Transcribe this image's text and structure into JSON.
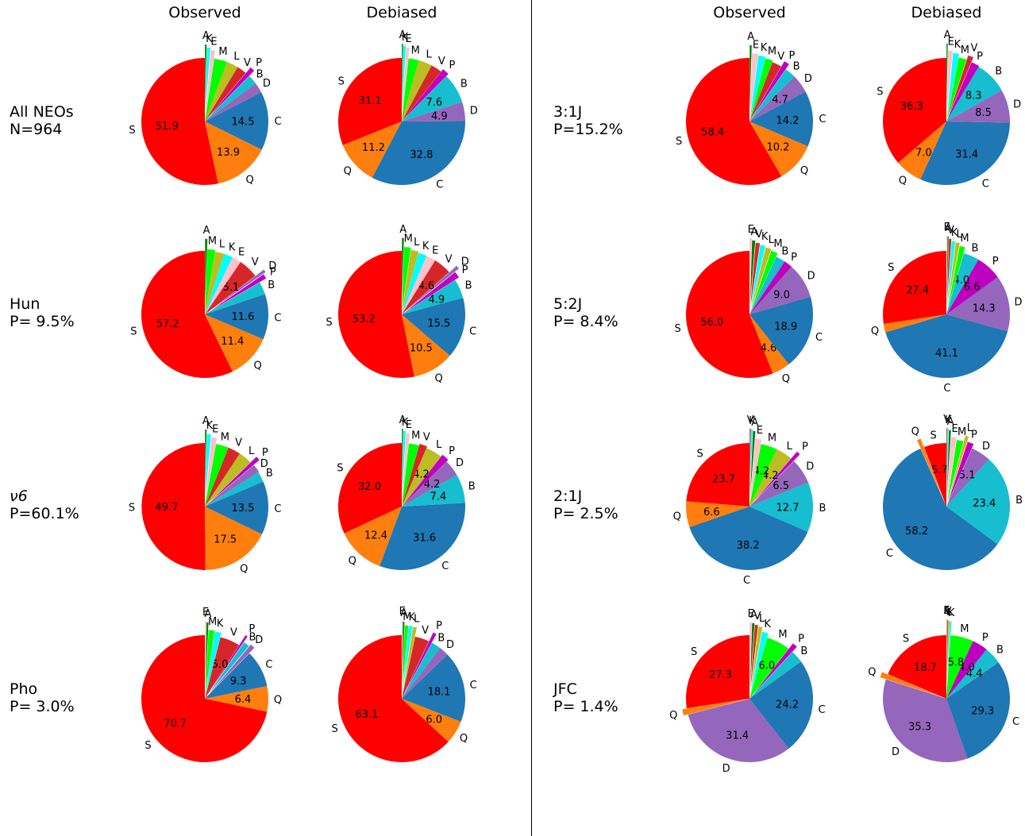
{
  "column_headers": [
    "Observed",
    "Debiased",
    "Observed",
    "Debiased"
  ],
  "row_labels": [
    {
      "line1": "All NEOs",
      "line2": "N=964"
    },
    {
      "line1": "Hun",
      "line2": "P= 9.5%"
    },
    {
      "line1": "ν6",
      "line2": "P=60.1%"
    },
    {
      "line1": "Pho",
      "line2": "P= 3.0%"
    },
    {
      "line1": "3:1J",
      "line2": "P=15.2%"
    },
    {
      "line1": "5:2J",
      "line2": "P= 8.4%"
    },
    {
      "line1": "2:1J",
      "line2": "P= 2.5%"
    },
    {
      "line1": "JFC",
      "line2": "P= 1.4%"
    }
  ],
  "colors": {
    "S": "#ff0000",
    "Q": "#ff7f0e",
    "C": "#1f77b4",
    "D": "#9467bd",
    "B": "#17becf",
    "P": "#bf00bf",
    "V": "#d62728",
    "L": "#bcbd22",
    "M": "#00ff00",
    "E": "#ffc0cb",
    "K": "#00ffff",
    "A": "#008000"
  },
  "chart_data": [
    {
      "type": "pie",
      "population": "All NEOs",
      "panel": "Observed",
      "slices": [
        {
          "label": "S",
          "value": 51.9
        },
        {
          "label": "Q",
          "value": 13.9
        },
        {
          "label": "C",
          "value": 14.5
        },
        {
          "label": "D",
          "value": 2.6
        },
        {
          "label": "B",
          "value": 2.3
        },
        {
          "label": "P",
          "value": 1.2
        },
        {
          "label": "V",
          "value": 2.4
        },
        {
          "label": "L",
          "value": 2.9
        },
        {
          "label": "M",
          "value": 3.2
        },
        {
          "label": "E",
          "value": 1.1
        },
        {
          "label": "K",
          "value": 0.8
        },
        {
          "label": "A",
          "value": 0.4
        }
      ]
    },
    {
      "type": "pie",
      "population": "All NEOs",
      "panel": "Debiased",
      "slices": [
        {
          "label": "S",
          "value": 31.1
        },
        {
          "label": "Q",
          "value": 11.2
        },
        {
          "label": "C",
          "value": 32.8
        },
        {
          "label": "D",
          "value": 4.9
        },
        {
          "label": "B",
          "value": 7.6
        },
        {
          "label": "P",
          "value": 1.8
        },
        {
          "label": "V",
          "value": 2.8
        },
        {
          "label": "L",
          "value": 3.5
        },
        {
          "label": "M",
          "value": 2.6
        },
        {
          "label": "E",
          "value": 0.8
        },
        {
          "label": "K",
          "value": 0.6
        },
        {
          "label": "A",
          "value": 0.3
        }
      ]
    },
    {
      "type": "pie",
      "population": "Hun",
      "panel": "Observed",
      "slices": [
        {
          "label": "S",
          "value": 57.2
        },
        {
          "label": "Q",
          "value": 11.4
        },
        {
          "label": "C",
          "value": 11.6
        },
        {
          "label": "B",
          "value": 3.2
        },
        {
          "label": "P",
          "value": 1.2
        },
        {
          "label": "D",
          "value": 0.8
        },
        {
          "label": "V",
          "value": 5.1
        },
        {
          "label": "E",
          "value": 2.3
        },
        {
          "label": "K",
          "value": 2.3
        },
        {
          "label": "L",
          "value": 2.3
        },
        {
          "label": "M",
          "value": 2.0
        },
        {
          "label": "A",
          "value": 0.6
        }
      ]
    },
    {
      "type": "pie",
      "population": "Hun",
      "panel": "Debiased",
      "slices": [
        {
          "label": "S",
          "value": 53.2
        },
        {
          "label": "Q",
          "value": 10.5
        },
        {
          "label": "C",
          "value": 15.5
        },
        {
          "label": "B",
          "value": 4.9
        },
        {
          "label": "P",
          "value": 1.6
        },
        {
          "label": "D",
          "value": 0.9
        },
        {
          "label": "V",
          "value": 4.6
        },
        {
          "label": "E",
          "value": 2.4
        },
        {
          "label": "K",
          "value": 2.2
        },
        {
          "label": "L",
          "value": 2.0
        },
        {
          "label": "M",
          "value": 1.7
        },
        {
          "label": "A",
          "value": 0.5
        }
      ]
    },
    {
      "type": "pie",
      "population": "ν6",
      "panel": "Observed",
      "slices": [
        {
          "label": "S",
          "value": 49.7
        },
        {
          "label": "Q",
          "value": 17.5
        },
        {
          "label": "C",
          "value": 13.5
        },
        {
          "label": "B",
          "value": 2.6
        },
        {
          "label": "D",
          "value": 2.1
        },
        {
          "label": "P",
          "value": 1.1
        },
        {
          "label": "L",
          "value": 3.4
        },
        {
          "label": "V",
          "value": 3.2
        },
        {
          "label": "M",
          "value": 3.2
        },
        {
          "label": "E",
          "value": 1.4
        },
        {
          "label": "K",
          "value": 1.0
        },
        {
          "label": "A",
          "value": 0.4
        }
      ]
    },
    {
      "type": "pie",
      "population": "ν6",
      "panel": "Debiased",
      "slices": [
        {
          "label": "S",
          "value": 32.0
        },
        {
          "label": "Q",
          "value": 12.4
        },
        {
          "label": "C",
          "value": 31.6
        },
        {
          "label": "B",
          "value": 7.4
        },
        {
          "label": "D",
          "value": 4.2
        },
        {
          "label": "P",
          "value": 1.9
        },
        {
          "label": "L",
          "value": 4.2
        },
        {
          "label": "V",
          "value": 2.0
        },
        {
          "label": "M",
          "value": 2.6
        },
        {
          "label": "E",
          "value": 0.9
        },
        {
          "label": "K",
          "value": 0.6
        },
        {
          "label": "A",
          "value": 0.3
        }
      ]
    },
    {
      "type": "pie",
      "population": "Pho",
      "panel": "Observed",
      "slices": [
        {
          "label": "S",
          "value": 70.7
        },
        {
          "label": "Q",
          "value": 6.4
        },
        {
          "label": "C",
          "value": 9.3
        },
        {
          "label": "D",
          "value": 1.2
        },
        {
          "label": "B",
          "value": 1.5
        },
        {
          "label": "P",
          "value": 0.6
        },
        {
          "label": "V",
          "value": 5.0
        },
        {
          "label": "K",
          "value": 1.6
        },
        {
          "label": "M",
          "value": 1.5
        },
        {
          "label": "A",
          "value": 0.5
        },
        {
          "label": "E",
          "value": 0.3
        }
      ]
    },
    {
      "type": "pie",
      "population": "Pho",
      "panel": "Debiased",
      "slices": [
        {
          "label": "S",
          "value": 63.1
        },
        {
          "label": "Q",
          "value": 6.0
        },
        {
          "label": "C",
          "value": 18.1
        },
        {
          "label": "D",
          "value": 2.5
        },
        {
          "label": "B",
          "value": 2.4
        },
        {
          "label": "P",
          "value": 0.9
        },
        {
          "label": "V",
          "value": 3.6
        },
        {
          "label": "L",
          "value": 1.0
        },
        {
          "label": "K",
          "value": 0.9
        },
        {
          "label": "M",
          "value": 0.9
        },
        {
          "label": "A",
          "value": 0.4
        },
        {
          "label": "E",
          "value": 0.2
        }
      ]
    },
    {
      "type": "pie",
      "population": "3:1J",
      "panel": "Observed",
      "slices": [
        {
          "label": "S",
          "value": 58.4
        },
        {
          "label": "Q",
          "value": 10.2
        },
        {
          "label": "C",
          "value": 14.2
        },
        {
          "label": "D",
          "value": 4.7
        },
        {
          "label": "B",
          "value": 2.8
        },
        {
          "label": "P",
          "value": 1.4
        },
        {
          "label": "V",
          "value": 2.4
        },
        {
          "label": "M",
          "value": 2.0
        },
        {
          "label": "K",
          "value": 1.8
        },
        {
          "label": "E",
          "value": 1.6
        },
        {
          "label": "A",
          "value": 0.5
        }
      ]
    },
    {
      "type": "pie",
      "population": "3:1J",
      "panel": "Debiased",
      "slices": [
        {
          "label": "S",
          "value": 36.3
        },
        {
          "label": "Q",
          "value": 7.0
        },
        {
          "label": "C",
          "value": 31.4
        },
        {
          "label": "D",
          "value": 8.5
        },
        {
          "label": "B",
          "value": 8.3
        },
        {
          "label": "P",
          "value": 2.1
        },
        {
          "label": "V",
          "value": 1.4
        },
        {
          "label": "M",
          "value": 2.0
        },
        {
          "label": "K",
          "value": 1.5
        },
        {
          "label": "E",
          "value": 1.2
        },
        {
          "label": "A",
          "value": 0.3
        }
      ]
    },
    {
      "type": "pie",
      "population": "5:2J",
      "panel": "Observed",
      "slices": [
        {
          "label": "S",
          "value": 56.0
        },
        {
          "label": "Q",
          "value": 4.6
        },
        {
          "label": "C",
          "value": 18.9
        },
        {
          "label": "D",
          "value": 9.0
        },
        {
          "label": "P",
          "value": 2.2
        },
        {
          "label": "B",
          "value": 2.4
        },
        {
          "label": "M",
          "value": 1.7
        },
        {
          "label": "L",
          "value": 1.5
        },
        {
          "label": "K",
          "value": 1.3
        },
        {
          "label": "V",
          "value": 1.1
        },
        {
          "label": "A",
          "value": 0.8
        },
        {
          "label": "E",
          "value": 0.5
        }
      ]
    },
    {
      "type": "pie",
      "population": "5:2J",
      "panel": "Debiased",
      "slices": [
        {
          "label": "S",
          "value": 27.4
        },
        {
          "label": "Q",
          "value": 2.2
        },
        {
          "label": "C",
          "value": 41.1
        },
        {
          "label": "D",
          "value": 14.3
        },
        {
          "label": "P",
          "value": 6.6
        },
        {
          "label": "B",
          "value": 4.0
        },
        {
          "label": "M",
          "value": 1.4
        },
        {
          "label": "L",
          "value": 1.0
        },
        {
          "label": "K",
          "value": 0.9
        },
        {
          "label": "V",
          "value": 0.6
        },
        {
          "label": "A",
          "value": 0.3
        },
        {
          "label": "E",
          "value": 0.2
        }
      ]
    },
    {
      "type": "pie",
      "population": "2:1J",
      "panel": "Observed",
      "slices": [
        {
          "label": "S",
          "value": 23.7
        },
        {
          "label": "Q",
          "value": 6.6
        },
        {
          "label": "C",
          "value": 38.2
        },
        {
          "label": "B",
          "value": 12.7
        },
        {
          "label": "D",
          "value": 6.5
        },
        {
          "label": "P",
          "value": 1.0
        },
        {
          "label": "L",
          "value": 4.2
        },
        {
          "label": "M",
          "value": 4.2
        },
        {
          "label": "E",
          "value": 1.6
        },
        {
          "label": "A",
          "value": 0.6
        },
        {
          "label": "K",
          "value": 0.4
        },
        {
          "label": "V",
          "value": 0.3
        }
      ]
    },
    {
      "type": "pie",
      "population": "2:1J",
      "panel": "Debiased",
      "slices": [
        {
          "label": "S",
          "value": 5.7
        },
        {
          "label": "Q",
          "value": 1.0
        },
        {
          "label": "C",
          "value": 58.2
        },
        {
          "label": "B",
          "value": 23.4
        },
        {
          "label": "D",
          "value": 5.1
        },
        {
          "label": "P",
          "value": 1.6
        },
        {
          "label": "L",
          "value": 0.9
        },
        {
          "label": "M",
          "value": 1.7
        },
        {
          "label": "E",
          "value": 1.4
        },
        {
          "label": "A",
          "value": 0.5
        },
        {
          "label": "K",
          "value": 0.3
        },
        {
          "label": "V",
          "value": 0.2
        }
      ]
    },
    {
      "type": "pie",
      "population": "JFC",
      "panel": "Observed",
      "slices": [
        {
          "label": "S",
          "value": 27.3
        },
        {
          "label": "Q",
          "value": 1.6
        },
        {
          "label": "D",
          "value": 31.4
        },
        {
          "label": "C",
          "value": 24.2
        },
        {
          "label": "B",
          "value": 3.2
        },
        {
          "label": "P",
          "value": 1.3
        },
        {
          "label": "M",
          "value": 6.0
        },
        {
          "label": "K",
          "value": 1.6
        },
        {
          "label": "L",
          "value": 1.0
        },
        {
          "label": "V",
          "value": 0.8
        },
        {
          "label": "A",
          "value": 0.6
        },
        {
          "label": "E",
          "value": 0.5
        }
      ]
    },
    {
      "type": "pie",
      "population": "JFC",
      "panel": "Debiased",
      "slices": [
        {
          "label": "S",
          "value": 18.7
        },
        {
          "label": "Q",
          "value": 1.4
        },
        {
          "label": "D",
          "value": 35.3
        },
        {
          "label": "C",
          "value": 29.3
        },
        {
          "label": "B",
          "value": 4.4
        },
        {
          "label": "P",
          "value": 4.0
        },
        {
          "label": "M",
          "value": 5.8
        },
        {
          "label": "K",
          "value": 0.4
        },
        {
          "label": "L",
          "value": 0.3
        },
        {
          "label": "V",
          "value": 0.2
        },
        {
          "label": "A",
          "value": 0.1
        },
        {
          "label": "E",
          "value": 0.1
        }
      ]
    }
  ]
}
